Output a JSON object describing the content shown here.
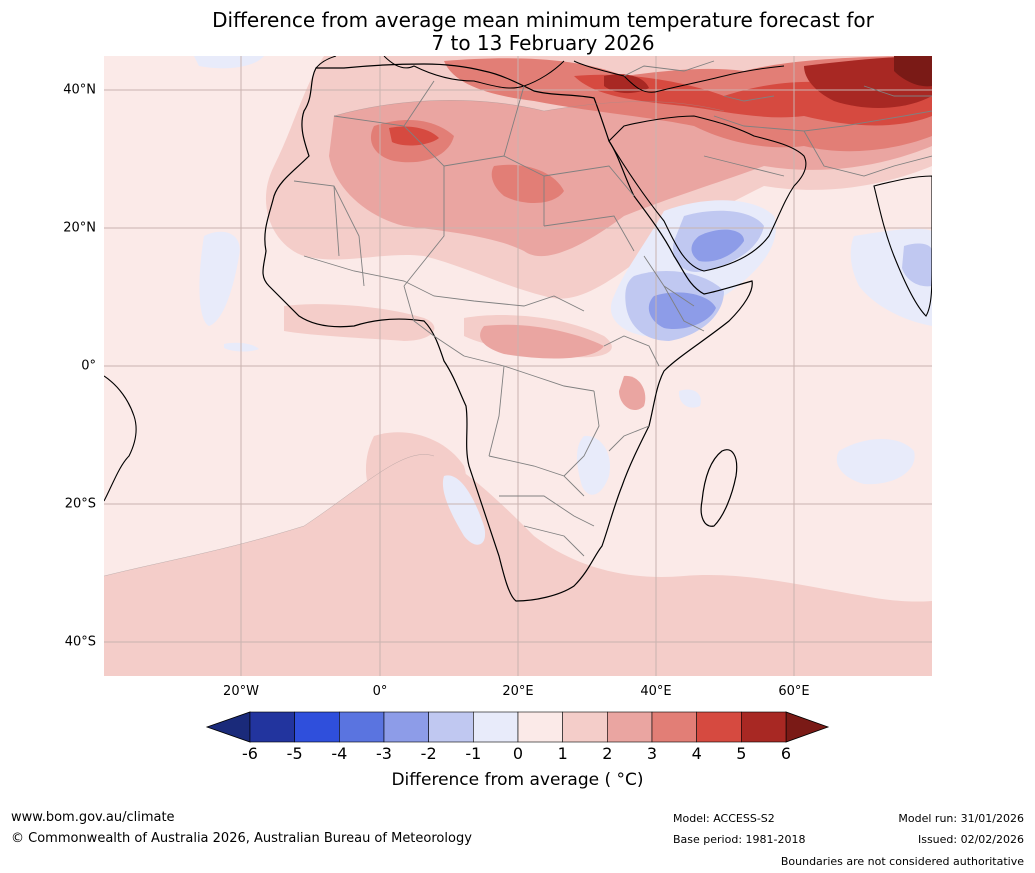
{
  "title": {
    "line1": "Difference from average mean minimum temperature forecast for",
    "line2": "7 to 13 February 2026"
  },
  "map": {
    "lat_labels": [
      "40°N",
      "20°N",
      "0°",
      "20°S",
      "40°S"
    ],
    "lon_labels": [
      "20°W",
      "0°",
      "20°E",
      "40°E",
      "60°E"
    ]
  },
  "colorbar": {
    "ticks": [
      "-6",
      "-5",
      "-4",
      "-3",
      "-2",
      "-1",
      "0",
      "1",
      "2",
      "3",
      "4",
      "5",
      "6"
    ],
    "colors": [
      "#22349e",
      "#2f4fdc",
      "#5a74e0",
      "#8d9ce8",
      "#c0c8f1",
      "#e8ebfa",
      "#fbeae8",
      "#f4cdc9",
      "#eaa5a1",
      "#e27e76",
      "#d64a40",
      "#a82823"
    ],
    "under_color": "#1a2a7a",
    "over_color": "#7a1a16",
    "label": "Difference from average ( °C)"
  },
  "footer": {
    "url": "www.bom.gov.au/climate",
    "copyright": "© Commonwealth of Australia 2026, Australian Bureau of Meteorology",
    "model": "Model: ACCESS-S2",
    "base_period": "Base period: 1981-2018",
    "model_run": "Model run: 31/01/2026",
    "issued": "Issued: 02/02/2026",
    "disclaimer": "Boundaries are not considered authoritative"
  }
}
